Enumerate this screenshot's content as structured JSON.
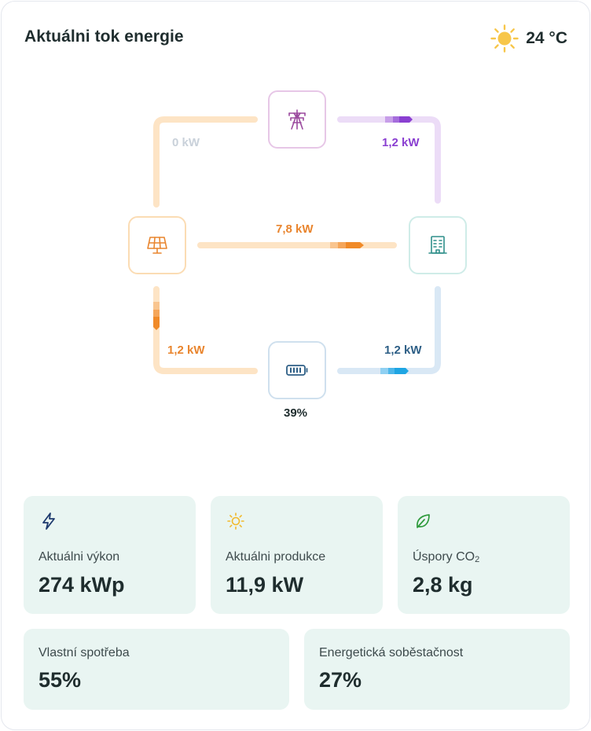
{
  "header": {
    "title": "Aktuálni tok energie",
    "weather_icon": "sun-icon",
    "temperature": "24 °C"
  },
  "colors": {
    "solar": "#f39a3c",
    "grid": "#9a3fd6",
    "home": "#2f8f8a",
    "battery": "#2e5f86",
    "card_bg": "#e9f5f2",
    "text": "#1f2d2e"
  },
  "flow": {
    "nodes": {
      "grid": {
        "icon": "power-pylon-icon"
      },
      "solar": {
        "icon": "solar-panel-icon"
      },
      "home": {
        "icon": "building-icon"
      },
      "battery": {
        "icon": "battery-icon",
        "charge": "39%"
      }
    },
    "grid_to_solar": "0 kW",
    "grid_to_home": "1,2 kW",
    "solar_to_home": "7,8 kW",
    "solar_to_battery": "1,2 kW",
    "battery_to_home": "1,2 kW"
  },
  "stats": [
    {
      "icon": "lightning-icon",
      "label": "Aktuálni výkon",
      "value": "274 kWp"
    },
    {
      "icon": "sun-icon",
      "label": "Aktuálni produkce",
      "value": "11,9 kW"
    },
    {
      "icon": "leaf-icon",
      "label": "Úspory CO",
      "label_sub": "2",
      "value": "2,8 kg"
    },
    {
      "label": "Vlastní spotřeba",
      "value": "55%"
    },
    {
      "label": "Energetická soběstačnost",
      "value": "27%"
    }
  ]
}
